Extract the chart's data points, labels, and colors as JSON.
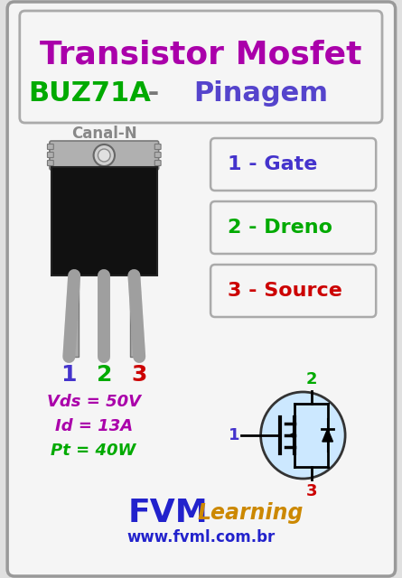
{
  "bg_color": "#e0e0e0",
  "card_bg": "#f5f5f5",
  "title_line1": "Transistor Mosfet",
  "title_line2_part1": "BUZ71A",
  "title_line2_part2": " - ",
  "title_line2_part3": "Pinagem",
  "title_color1": "#aa00aa",
  "title_color2": "#00aa00",
  "title_color3": "#5544cc",
  "canal_n_color": "#888888",
  "pin_labels": [
    "1 - Gate",
    "2 - Dreno",
    "3 - Source"
  ],
  "pin_colors": [
    "#4433cc",
    "#00aa00",
    "#cc0000"
  ],
  "pin_numbers_colors": [
    "#4433cc",
    "#00aa00",
    "#cc0000"
  ],
  "specs": [
    "Vds = 50V",
    "Id = 13A",
    "Pt = 40W"
  ],
  "specs_colors": [
    "#aa00aa",
    "#aa00aa",
    "#00aa00"
  ],
  "fvm_color": "#2222cc",
  "learning_color": "#cc8800",
  "website_color": "#2222cc"
}
